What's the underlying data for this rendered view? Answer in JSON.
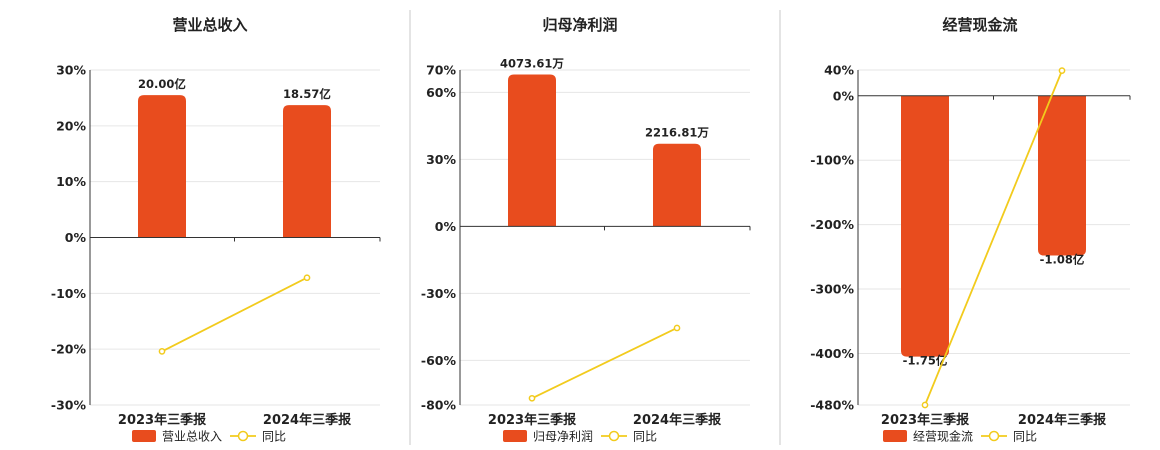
{
  "chart_data": [
    {
      "type": "bar",
      "title": "营业总收入",
      "categories": [
        "2023年三季报",
        "2024年三季报"
      ],
      "series": [
        {
          "name": "营业总收入",
          "type": "bar",
          "values": [
            25.5,
            23.7
          ],
          "labels": [
            "20.00亿",
            "18.57亿"
          ],
          "color": "#E84C1E"
        },
        {
          "name": "同比",
          "type": "line",
          "values": [
            -20.4,
            -7.2
          ],
          "color": "#F2CB1D"
        }
      ],
      "yticks": [
        30,
        20,
        10,
        0,
        -10,
        -20,
        -30
      ],
      "ytick_labels": [
        "30%",
        "20%",
        "10%",
        "0%",
        "-10%",
        "-20%",
        "-30%"
      ],
      "ylim": [
        -30,
        30
      ]
    },
    {
      "type": "bar",
      "title": "归母净利润",
      "categories": [
        "2023年三季报",
        "2024年三季报"
      ],
      "series": [
        {
          "name": "归母净利润",
          "type": "bar",
          "values": [
            68,
            37
          ],
          "labels": [
            "4073.61万",
            "2216.81万"
          ],
          "color": "#E84C1E"
        },
        {
          "name": "同比",
          "type": "line",
          "values": [
            -77,
            -45.5
          ],
          "color": "#F2CB1D"
        }
      ],
      "yticks": [
        70,
        60,
        30,
        0,
        -30,
        -60,
        -80
      ],
      "ytick_labels": [
        "70%",
        "60%",
        "30%",
        "0%",
        "-30%",
        "-60%",
        "-80%"
      ],
      "ylim": [
        -80,
        70
      ]
    },
    {
      "type": "bar",
      "title": "经营现金流",
      "categories": [
        "2023年三季报",
        "2024年三季报"
      ],
      "series": [
        {
          "name": "经营现金流",
          "type": "bar",
          "values": [
            -405,
            -248
          ],
          "labels": [
            "-1.75亿",
            "-1.08亿"
          ],
          "color": "#E84C1E"
        },
        {
          "name": "同比",
          "type": "line",
          "values": [
            -480,
            39
          ],
          "color": "#F2CB1D"
        }
      ],
      "yticks": [
        40,
        0,
        -100,
        -200,
        -300,
        -400,
        -480
      ],
      "ytick_labels": [
        "40%",
        "0%",
        "-100%",
        "-200%",
        "-300%",
        "-400%",
        "-480%"
      ],
      "ylim": [
        -480,
        40
      ]
    }
  ]
}
